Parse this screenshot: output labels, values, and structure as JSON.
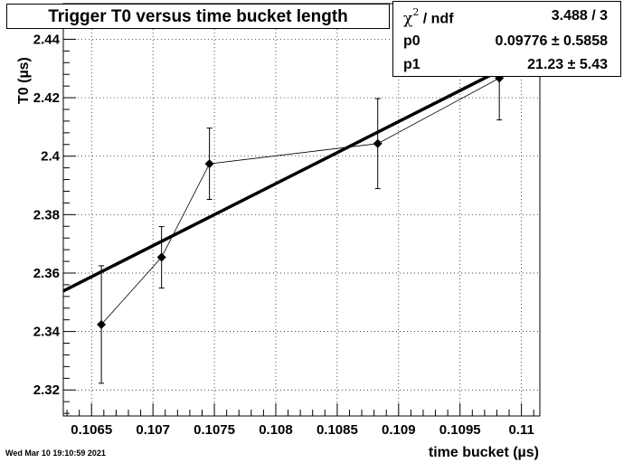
{
  "title": "Trigger T0 versus time bucket length",
  "stats": {
    "chi2_ndf_label": "/ ndf",
    "chi2_ndf_value": "3.488 / 3",
    "p0_label": "p0",
    "p0_value": "0.09776 ± 0.5858",
    "p1_label": "p1",
    "p1_value": "21.23 ±  5.43"
  },
  "timestamp": "Wed Mar 10 19:10:59 2021",
  "chart_data": {
    "type": "scatter",
    "xlabel": "time bucket (µs)",
    "ylabel": "T0 (µs)",
    "xlim": [
      0.10627,
      0.11015
    ],
    "ylim": [
      2.3111,
      2.4522
    ],
    "x_ticks": [
      0.1065,
      0.107,
      0.1075,
      0.108,
      0.1085,
      0.109,
      0.1095,
      0.11
    ],
    "x_tick_labels": [
      "0.1065",
      "0.107",
      "0.1075",
      "0.108",
      "0.1085",
      "0.109",
      "0.1095",
      "0.11"
    ],
    "y_ticks": [
      2.32,
      2.34,
      2.36,
      2.38,
      2.4,
      2.42,
      2.44
    ],
    "y_tick_labels": [
      "2.32",
      "2.34",
      "2.36",
      "2.38",
      "2.4",
      "2.42",
      "2.44"
    ],
    "points": [
      {
        "x": 0.10658,
        "y": 2.3424,
        "err": 0.0201
      },
      {
        "x": 0.10707,
        "y": 2.3654,
        "err": 0.0105
      },
      {
        "x": 0.10746,
        "y": 2.3974,
        "err": 0.0122
      },
      {
        "x": 0.10883,
        "y": 2.4043,
        "err": 0.0154
      },
      {
        "x": 0.10982,
        "y": 2.4267,
        "err": 0.0143
      }
    ],
    "fit": {
      "p0": 0.09776,
      "p1": 21.23
    },
    "grid": true
  }
}
